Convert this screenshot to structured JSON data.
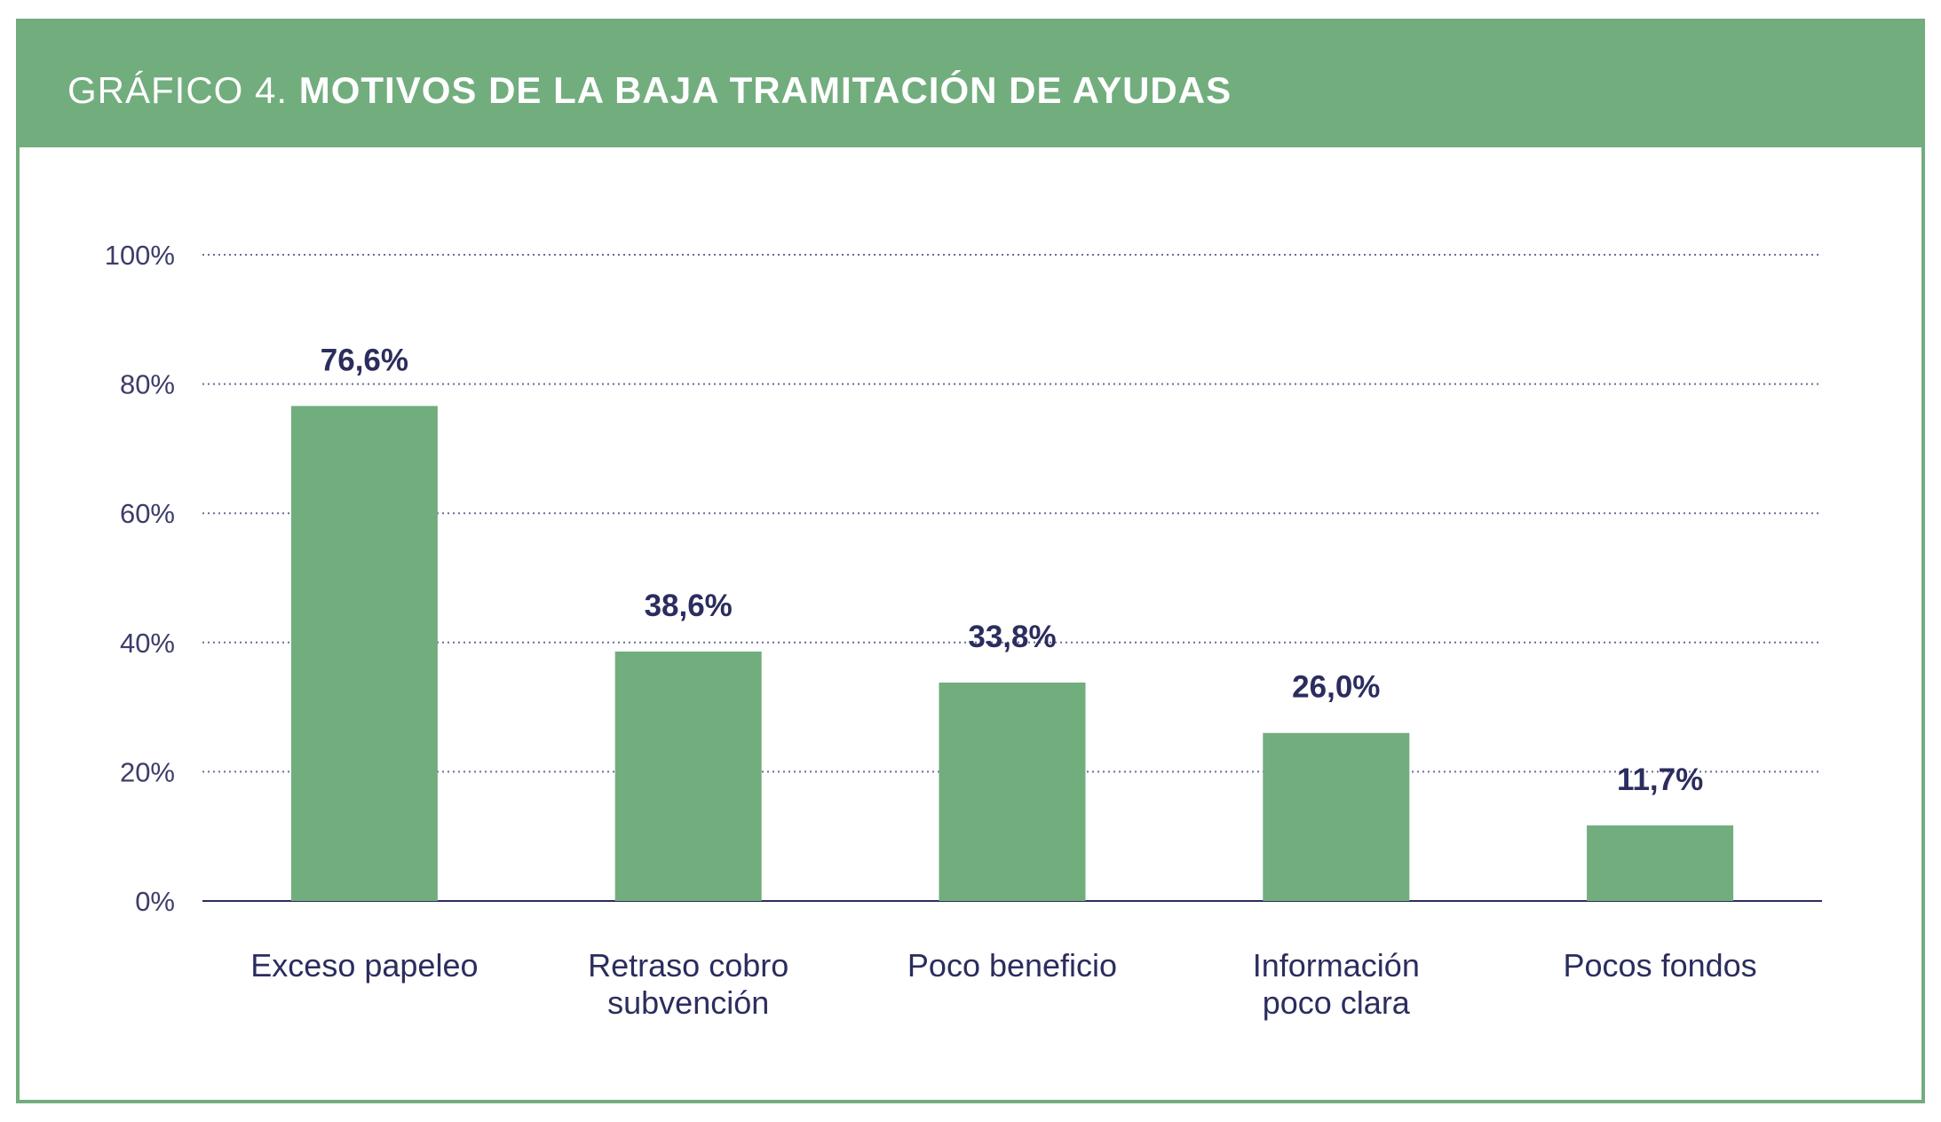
{
  "header": {
    "prefix": "GRÁFICO 4.",
    "title": "MOTIVOS DE LA BAJA TRAMITACIÓN DE AYUDAS"
  },
  "colors": {
    "accent": "#72ad7e",
    "bar": "#72ad7e",
    "text": "#2b2d5e",
    "grid": "#6b6b9a",
    "axis": "#2b2d5e"
  },
  "chart_data": {
    "type": "bar",
    "title": "MOTIVOS DE LA BAJA TRAMITACIÓN DE AYUDAS",
    "xlabel": "",
    "ylabel": "",
    "ylim": [
      0,
      100
    ],
    "grid": true,
    "yticks": [
      0,
      20,
      40,
      60,
      80,
      100
    ],
    "ytick_labels": [
      "0%",
      "20%",
      "40%",
      "60%",
      "80%",
      "100%"
    ],
    "categories": [
      [
        "Exceso papeleo"
      ],
      [
        "Retraso cobro",
        "subvención"
      ],
      [
        "Poco beneficio"
      ],
      [
        "Información",
        "poco clara"
      ],
      [
        "Pocos fondos"
      ]
    ],
    "values": [
      76.6,
      38.6,
      33.8,
      26.0,
      11.7
    ],
    "value_labels": [
      "76,6%",
      "38,6%",
      "33,8%",
      "26,0%",
      "11,7%"
    ]
  }
}
